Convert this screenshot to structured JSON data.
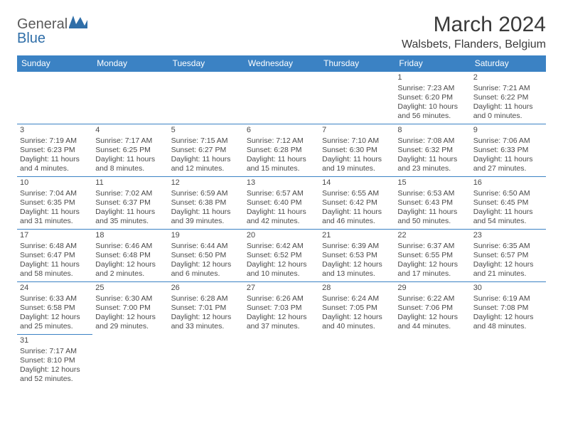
{
  "logo": {
    "text_general": "General",
    "text_blue": "Blue"
  },
  "title": "March 2024",
  "location": "Walsbets, Flanders, Belgium",
  "colors": {
    "header_bg": "#3b82c4",
    "header_text": "#ffffff",
    "cell_border": "#3b82c4",
    "text": "#4a4a4a",
    "logo_gray": "#5a5a5a",
    "logo_blue": "#2f6ea8"
  },
  "day_headers": [
    "Sunday",
    "Monday",
    "Tuesday",
    "Wednesday",
    "Thursday",
    "Friday",
    "Saturday"
  ],
  "weeks": [
    [
      null,
      null,
      null,
      null,
      null,
      {
        "n": "1",
        "rise": "7:23 AM",
        "set": "6:20 PM",
        "dh": "10",
        "dm": "56"
      },
      {
        "n": "2",
        "rise": "7:21 AM",
        "set": "6:22 PM",
        "dh": "11",
        "dm": "0"
      }
    ],
    [
      {
        "n": "3",
        "rise": "7:19 AM",
        "set": "6:23 PM",
        "dh": "11",
        "dm": "4"
      },
      {
        "n": "4",
        "rise": "7:17 AM",
        "set": "6:25 PM",
        "dh": "11",
        "dm": "8"
      },
      {
        "n": "5",
        "rise": "7:15 AM",
        "set": "6:27 PM",
        "dh": "11",
        "dm": "12"
      },
      {
        "n": "6",
        "rise": "7:12 AM",
        "set": "6:28 PM",
        "dh": "11",
        "dm": "15"
      },
      {
        "n": "7",
        "rise": "7:10 AM",
        "set": "6:30 PM",
        "dh": "11",
        "dm": "19"
      },
      {
        "n": "8",
        "rise": "7:08 AM",
        "set": "6:32 PM",
        "dh": "11",
        "dm": "23"
      },
      {
        "n": "9",
        "rise": "7:06 AM",
        "set": "6:33 PM",
        "dh": "11",
        "dm": "27"
      }
    ],
    [
      {
        "n": "10",
        "rise": "7:04 AM",
        "set": "6:35 PM",
        "dh": "11",
        "dm": "31"
      },
      {
        "n": "11",
        "rise": "7:02 AM",
        "set": "6:37 PM",
        "dh": "11",
        "dm": "35"
      },
      {
        "n": "12",
        "rise": "6:59 AM",
        "set": "6:38 PM",
        "dh": "11",
        "dm": "39"
      },
      {
        "n": "13",
        "rise": "6:57 AM",
        "set": "6:40 PM",
        "dh": "11",
        "dm": "42"
      },
      {
        "n": "14",
        "rise": "6:55 AM",
        "set": "6:42 PM",
        "dh": "11",
        "dm": "46"
      },
      {
        "n": "15",
        "rise": "6:53 AM",
        "set": "6:43 PM",
        "dh": "11",
        "dm": "50"
      },
      {
        "n": "16",
        "rise": "6:50 AM",
        "set": "6:45 PM",
        "dh": "11",
        "dm": "54"
      }
    ],
    [
      {
        "n": "17",
        "rise": "6:48 AM",
        "set": "6:47 PM",
        "dh": "11",
        "dm": "58"
      },
      {
        "n": "18",
        "rise": "6:46 AM",
        "set": "6:48 PM",
        "dh": "12",
        "dm": "2"
      },
      {
        "n": "19",
        "rise": "6:44 AM",
        "set": "6:50 PM",
        "dh": "12",
        "dm": "6"
      },
      {
        "n": "20",
        "rise": "6:42 AM",
        "set": "6:52 PM",
        "dh": "12",
        "dm": "10"
      },
      {
        "n": "21",
        "rise": "6:39 AM",
        "set": "6:53 PM",
        "dh": "12",
        "dm": "13"
      },
      {
        "n": "22",
        "rise": "6:37 AM",
        "set": "6:55 PM",
        "dh": "12",
        "dm": "17"
      },
      {
        "n": "23",
        "rise": "6:35 AM",
        "set": "6:57 PM",
        "dh": "12",
        "dm": "21"
      }
    ],
    [
      {
        "n": "24",
        "rise": "6:33 AM",
        "set": "6:58 PM",
        "dh": "12",
        "dm": "25"
      },
      {
        "n": "25",
        "rise": "6:30 AM",
        "set": "7:00 PM",
        "dh": "12",
        "dm": "29"
      },
      {
        "n": "26",
        "rise": "6:28 AM",
        "set": "7:01 PM",
        "dh": "12",
        "dm": "33"
      },
      {
        "n": "27",
        "rise": "6:26 AM",
        "set": "7:03 PM",
        "dh": "12",
        "dm": "37"
      },
      {
        "n": "28",
        "rise": "6:24 AM",
        "set": "7:05 PM",
        "dh": "12",
        "dm": "40"
      },
      {
        "n": "29",
        "rise": "6:22 AM",
        "set": "7:06 PM",
        "dh": "12",
        "dm": "44"
      },
      {
        "n": "30",
        "rise": "6:19 AM",
        "set": "7:08 PM",
        "dh": "12",
        "dm": "48"
      }
    ],
    [
      {
        "n": "31",
        "rise": "7:17 AM",
        "set": "8:10 PM",
        "dh": "12",
        "dm": "52"
      },
      null,
      null,
      null,
      null,
      null,
      null
    ]
  ]
}
